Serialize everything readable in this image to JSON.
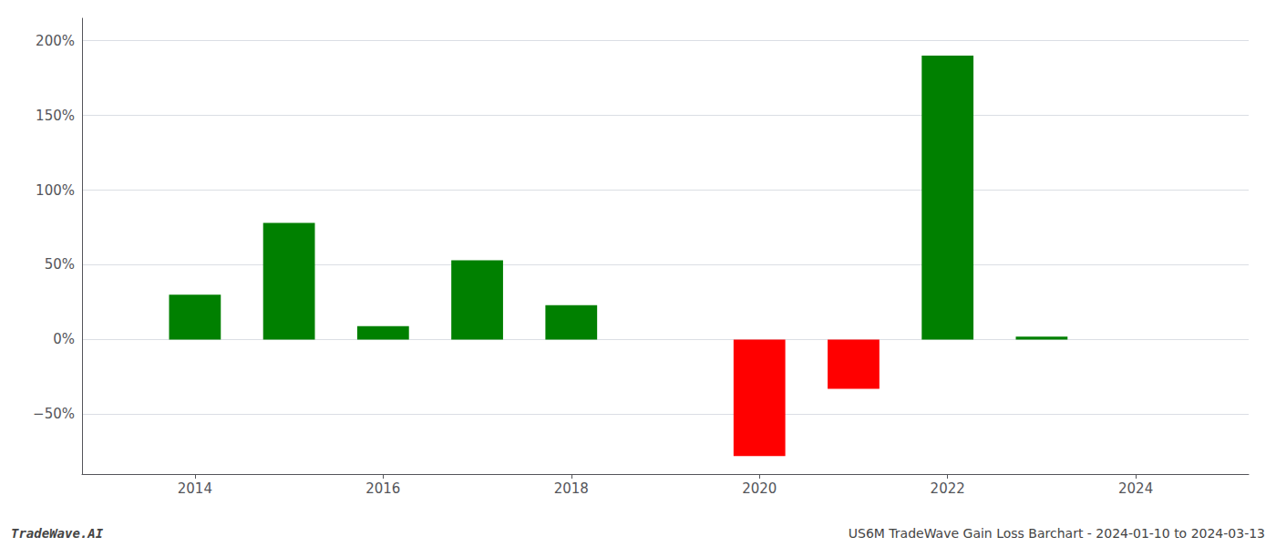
{
  "chart_data": {
    "type": "bar",
    "x": [
      2014,
      2015,
      2016,
      2017,
      2018,
      2019,
      2020,
      2021,
      2022,
      2023,
      2024
    ],
    "values": [
      30,
      78,
      9,
      53,
      23,
      0,
      -78,
      -33,
      190,
      2,
      0
    ],
    "colors": [
      "#008000",
      "#008000",
      "#008000",
      "#008000",
      "#008000",
      "#008000",
      "#ff0000",
      "#ff0000",
      "#008000",
      "#008000",
      "#008000"
    ],
    "xlim": [
      2012.8,
      2025.2
    ],
    "xticks": [
      2014,
      2016,
      2018,
      2020,
      2022,
      2024
    ],
    "ylim": [
      -90,
      215
    ],
    "yticks": [
      {
        "value": -50,
        "label": "−50%"
      },
      {
        "value": 0,
        "label": "0%"
      },
      {
        "value": 50,
        "label": "50%"
      },
      {
        "value": 100,
        "label": "100%"
      },
      {
        "value": 150,
        "label": "150%"
      },
      {
        "value": 200,
        "label": "200%"
      }
    ],
    "grid": true,
    "annotations": [
      {
        "text": "TradeWave.AI"
      },
      {
        "text": "US6M TradeWave Gain Loss Barchart - 2024-01-10 to 2024-03-13"
      }
    ]
  }
}
